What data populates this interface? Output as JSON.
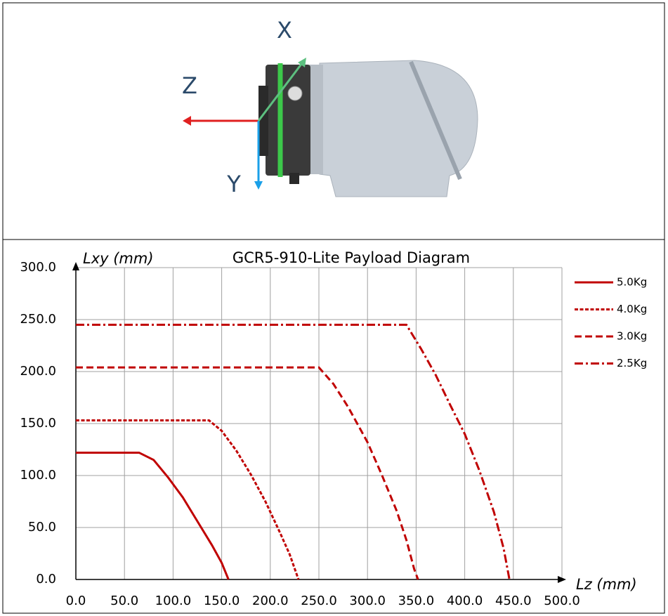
{
  "figure": {
    "axes": {
      "x": "X",
      "y": "Y",
      "z": "Z"
    }
  },
  "chart_data": {
    "type": "line",
    "title": "GCR5-910-Lite Payload Diagram",
    "x_label": "Lz (mm)",
    "y_label": "Lxy (mm)",
    "xlim": [
      0,
      500
    ],
    "ylim": [
      0,
      300
    ],
    "xticks": [
      {
        "value": 0,
        "label": "0.0"
      },
      {
        "value": 50,
        "label": "50.0"
      },
      {
        "value": 100,
        "label": "100.0"
      },
      {
        "value": 150,
        "label": "150.0"
      },
      {
        "value": 200,
        "label": "200.0"
      },
      {
        "value": 250,
        "label": "250.0"
      },
      {
        "value": 300,
        "label": "300.0"
      },
      {
        "value": 350,
        "label": "350.0"
      },
      {
        "value": 400,
        "label": "400.0"
      },
      {
        "value": 450,
        "label": "450.0"
      },
      {
        "value": 500,
        "label": "500.0"
      }
    ],
    "yticks": [
      {
        "value": 0,
        "label": "0.0"
      },
      {
        "value": 50,
        "label": "50.0"
      },
      {
        "value": 100,
        "label": "100.0"
      },
      {
        "value": 150,
        "label": "150.0"
      },
      {
        "value": 200,
        "label": "200.0"
      },
      {
        "value": 250,
        "label": "250.0"
      },
      {
        "value": 300,
        "label": "300.0"
      }
    ],
    "grid": true,
    "legend": "right",
    "series": [
      {
        "name": "5.0Kg",
        "color": "#c00000",
        "line_style": "solid",
        "x": [
          0,
          65,
          80,
          95,
          110,
          125,
          140,
          150,
          157
        ],
        "values": [
          122,
          122,
          115,
          98,
          79,
          56,
          33,
          16,
          0
        ]
      },
      {
        "name": "4.0Kg",
        "color": "#c00000",
        "line_style": "dotted",
        "x": [
          0,
          137,
          150,
          165,
          180,
          195,
          210,
          220,
          229
        ],
        "values": [
          153,
          153,
          143,
          124,
          101,
          75,
          45,
          24,
          0
        ]
      },
      {
        "name": "3.0Kg",
        "color": "#c00000",
        "line_style": "dashed",
        "x": [
          0,
          250,
          265,
          280,
          300,
          315,
          330,
          340,
          348,
          352
        ],
        "values": [
          204,
          204,
          188,
          166,
          132,
          100,
          66,
          38,
          10,
          0
        ]
      },
      {
        "name": "2.5Kg",
        "color": "#c00000",
        "line_style": "dashdot",
        "x": [
          0,
          340,
          355,
          370,
          385,
          400,
          415,
          430,
          440,
          446
        ],
        "values": [
          245,
          245,
          222,
          197,
          168,
          140,
          105,
          65,
          30,
          0
        ]
      }
    ]
  }
}
